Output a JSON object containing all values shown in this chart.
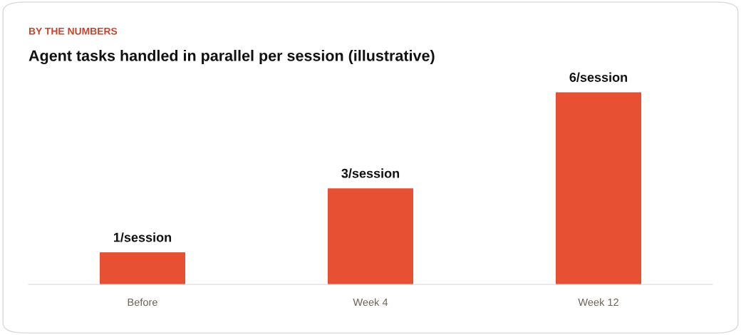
{
  "chart_data": {
    "type": "bar",
    "subtitle": "BY THE NUMBERS",
    "title": "Agent tasks handled in parallel per session (illustrative)",
    "categories": [
      "Before",
      "Week 4",
      "Week 12"
    ],
    "values": [
      1,
      3,
      6
    ],
    "value_labels": [
      "1/session",
      "3/session",
      "6/session"
    ],
    "color": "#e85034",
    "tick_labels": "x"
  }
}
